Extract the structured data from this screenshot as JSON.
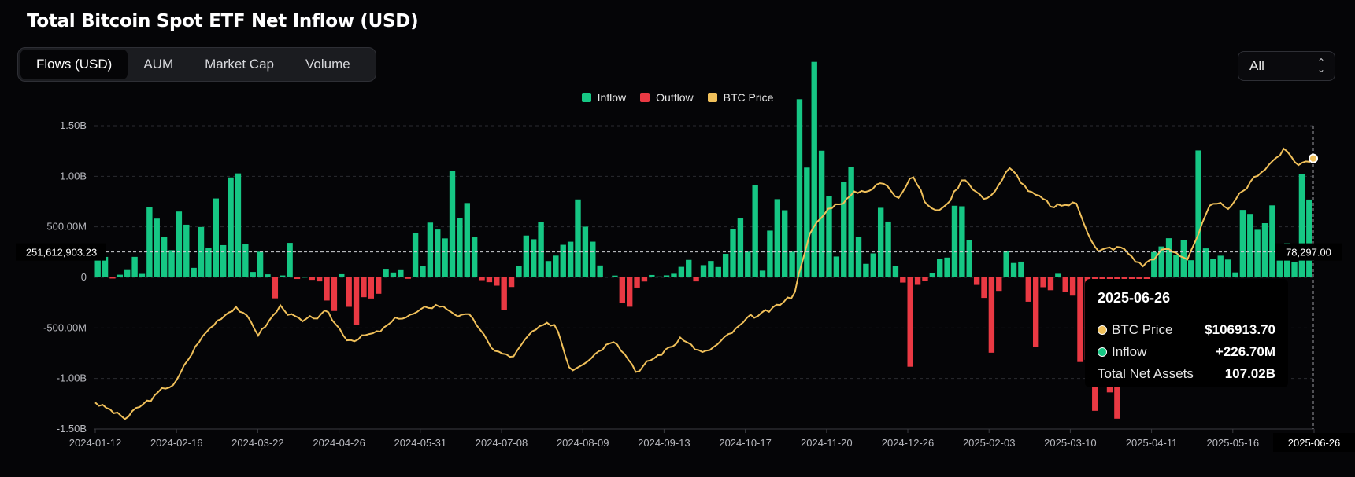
{
  "title": "Total Bitcoin Spot ETF Net Inflow (USD)",
  "tabs": [
    {
      "label": "Flows (USD)",
      "active": true
    },
    {
      "label": "AUM",
      "active": false
    },
    {
      "label": "Market Cap",
      "active": false
    },
    {
      "label": "Volume",
      "active": false
    }
  ],
  "range_select": {
    "value": "All"
  },
  "colors": {
    "inflow": "#16c784",
    "outflow": "#ea3943",
    "price": "#f0c05a"
  },
  "chart_data": {
    "type": "bar",
    "legend": [
      "Inflow",
      "Outflow",
      "BTC Price"
    ],
    "y_ticks": [
      "1.50B",
      "1.00B",
      "500.00M",
      "0",
      "-500.00M",
      "-1.00B",
      "-1.50B"
    ],
    "y_range": [
      -1.5,
      1.5
    ],
    "price_range": [
      40000,
      115000
    ],
    "x_ticks": [
      "2024-01-12",
      "2024-02-16",
      "2024-03-22",
      "2024-04-26",
      "2024-05-31",
      "2024-07-08",
      "2024-08-09",
      "2024-09-13",
      "2024-10-17",
      "2024-11-20",
      "2024-12-26",
      "2025-02-03",
      "2025-03-10",
      "2025-04-11",
      "2025-05-16",
      "2025-06-26"
    ],
    "flow_anchors_billion": [
      [
        0,
        0.2
      ],
      [
        4,
        0.1
      ],
      [
        8,
        0.5
      ],
      [
        12,
        0.4
      ],
      [
        16,
        0.6
      ],
      [
        19,
        1.05
      ],
      [
        21,
        0.4
      ],
      [
        23,
        -0.2
      ],
      [
        26,
        0.15
      ],
      [
        30,
        -0.1
      ],
      [
        35,
        -0.3
      ],
      [
        40,
        0.1
      ],
      [
        45,
        0.3
      ],
      [
        48,
        0.9
      ],
      [
        52,
        0.1
      ],
      [
        55,
        -0.15
      ],
      [
        58,
        0.3
      ],
      [
        62,
        0.25
      ],
      [
        66,
        0.55
      ],
      [
        70,
        -0.05
      ],
      [
        73,
        -0.25
      ],
      [
        76,
        -0.2
      ],
      [
        80,
        0.15
      ],
      [
        85,
        0.3
      ],
      [
        90,
        0.55
      ],
      [
        94,
        0.8
      ],
      [
        97,
        1.35
      ],
      [
        100,
        0.6
      ],
      [
        104,
        0.7
      ],
      [
        107,
        0.4
      ],
      [
        110,
        -0.6
      ],
      [
        113,
        0.4
      ],
      [
        115,
        0.9
      ],
      [
        118,
        0.2
      ],
      [
        121,
        -0.4
      ],
      [
        124,
        0.6
      ],
      [
        127,
        -0.5
      ],
      [
        130,
        0.2
      ],
      [
        134,
        -0.7
      ],
      [
        137,
        -1.0
      ],
      [
        140,
        -0.3
      ],
      [
        143,
        0.1
      ],
      [
        147,
        0.5
      ],
      [
        150,
        0.9
      ],
      [
        153,
        0.3
      ],
      [
        156,
        0.7
      ],
      [
        160,
        0.3
      ],
      [
        163,
        0.6
      ]
    ],
    "price_anchors": [
      [
        0,
        46800
      ],
      [
        4,
        42500
      ],
      [
        8,
        48000
      ],
      [
        11,
        52000
      ],
      [
        14,
        62000
      ],
      [
        17,
        68000
      ],
      [
        19,
        71000
      ],
      [
        22,
        63500
      ],
      [
        25,
        70500
      ],
      [
        28,
        66000
      ],
      [
        31,
        68500
      ],
      [
        34,
        62500
      ],
      [
        38,
        63500
      ],
      [
        41,
        67500
      ],
      [
        44,
        69000
      ],
      [
        46,
        71000
      ],
      [
        49,
        68500
      ],
      [
        51,
        67000
      ],
      [
        53,
        60500
      ],
      [
        56,
        57500
      ],
      [
        59,
        64000
      ],
      [
        62,
        66000
      ],
      [
        64,
        55000
      ],
      [
        67,
        59000
      ],
      [
        70,
        63000
      ],
      [
        73,
        54500
      ],
      [
        76,
        58500
      ],
      [
        79,
        62500
      ],
      [
        82,
        58500
      ],
      [
        85,
        62500
      ],
      [
        88,
        67000
      ],
      [
        91,
        69000
      ],
      [
        94,
        73000
      ],
      [
        96,
        88000
      ],
      [
        99,
        95000
      ],
      [
        102,
        98000
      ],
      [
        106,
        101000
      ],
      [
        108,
        97500
      ],
      [
        110,
        104000
      ],
      [
        112,
        95000
      ],
      [
        114,
        94000
      ],
      [
        117,
        102500
      ],
      [
        120,
        96500
      ],
      [
        123,
        104500
      ],
      [
        126,
        98500
      ],
      [
        129,
        94500
      ],
      [
        132,
        96000
      ],
      [
        135,
        84000
      ],
      [
        138,
        85000
      ],
      [
        141,
        80500
      ],
      [
        144,
        84500
      ],
      [
        147,
        82500
      ],
      [
        150,
        94500
      ],
      [
        153,
        95000
      ],
      [
        157,
        104000
      ],
      [
        160,
        109000
      ],
      [
        162,
        105500
      ],
      [
        164,
        106914
      ]
    ]
  },
  "crosshair": {
    "flow_label": "251,612,903.23",
    "price_label": "78,297.00",
    "date_label": "2025-06-26"
  },
  "tooltip": {
    "date": "2025-06-26",
    "rows": [
      {
        "dot": "price",
        "label": "BTC Price",
        "value": "$106913.70"
      },
      {
        "dot": "inflow",
        "label": "Inflow",
        "value": "+226.70M"
      },
      {
        "dot": "",
        "label": "Total Net Assets",
        "value": "107.02B"
      }
    ]
  }
}
